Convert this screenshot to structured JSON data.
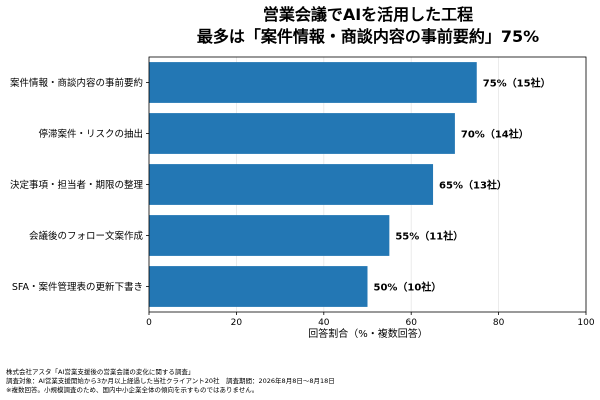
{
  "chart_data": {
    "type": "bar",
    "orientation": "horizontal",
    "title_line1": "営業会議でAIを活用した工程",
    "title_line2": "最多は「案件情報・商談内容の事前要約」75%",
    "categories": [
      "案件情報・商談内容の事前要約",
      "停滞案件・リスクの抽出",
      "決定事項・担当者・期限の整理",
      "会議後のフォロー文案作成",
      "SFA・案件管理表の更新下書き"
    ],
    "values": [
      75,
      70,
      65,
      55,
      50
    ],
    "data_labels": [
      "75%（15社）",
      "70%（14社）",
      "65%（13社）",
      "55%（11社）",
      "50%（10社）"
    ],
    "xlabel": "回答割合（%・複数回答）",
    "ylabel": "",
    "xlim": [
      0,
      100
    ],
    "xticks": [
      "0",
      "20",
      "40",
      "60",
      "80",
      "100"
    ],
    "grid": "vertical",
    "bar_color": "#2377b4"
  },
  "footnotes": {
    "line1": "株式会社アスタ「AI営業支援後の営業会議の変化に関する調査」",
    "line2": "調査対象：AI営業支援開始から3か月以上経過した当社クライアント20社　調査期間：2026年8月8日〜8月18日",
    "line3": "※複数回答。小規模調査のため、国内中小企業全体の傾向を示すものではありません。"
  }
}
